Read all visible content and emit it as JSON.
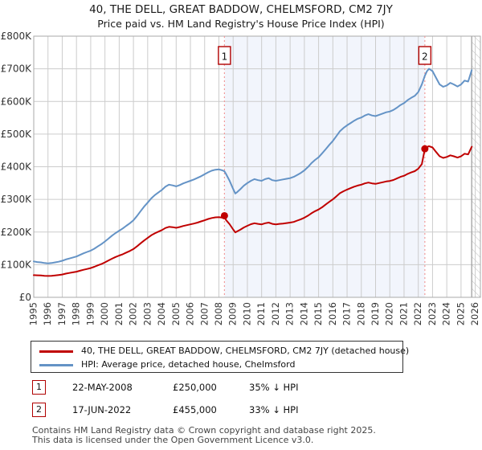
{
  "header": {
    "title": "40, THE DELL, GREAT BADDOW, CHELMSFORD, CM2 7JY",
    "subtitle": "Price paid vs. HM Land Registry's House Price Index (HPI)"
  },
  "colors": {
    "price_line": "#c00000",
    "hpi_line": "#6493c6",
    "grid": "#cccccc",
    "plot_border": "#aaaaaa",
    "shade": "#f2f5fc",
    "sale_dash": "#f29a9a",
    "marker_box_border": "#b00000",
    "hatch": "#c8c8c8",
    "hatch_edge": "#999999",
    "axis_text": "#333333"
  },
  "chart_data": {
    "type": "line",
    "title": "40, THE DELL, GREAT BADDOW, CHELMSFORD, CM2 7JY",
    "subtitle": "Price paid vs. HM Land Registry's House Price Index (HPI)",
    "x_axis": {
      "range": [
        1995,
        2026.36
      ],
      "ticks": [
        "1995",
        "1996",
        "1997",
        "1998",
        "1999",
        "2000",
        "2001",
        "2002",
        "2003",
        "2004",
        "2005",
        "2006",
        "2007",
        "2008",
        "2009",
        "2010",
        "2011",
        "2012",
        "2013",
        "2014",
        "2015",
        "2016",
        "2017",
        "2018",
        "2019",
        "2020",
        "2021",
        "2022",
        "2023",
        "2024",
        "2025",
        "2026"
      ]
    },
    "y_axis": {
      "range_k": [
        0,
        800
      ],
      "tick_step_k": 100,
      "tick_labels": [
        "£0",
        "£100K",
        "£200K",
        "£300K",
        "£400K",
        "£500K",
        "£600K",
        "£700K",
        "£800K"
      ]
    },
    "grid": true,
    "legend_position": "bottom",
    "units": "GBP thousands",
    "shaded_region": {
      "from": 2008.39,
      "to": 2022.46
    },
    "future_hatch_from": 2025.75,
    "sales": [
      {
        "num": "1",
        "date": "22-MAY-2008",
        "x": 2008.39,
        "value_k": 250,
        "price": "£250,000",
        "vs_hpi": "35% ↓ HPI"
      },
      {
        "num": "2",
        "date": "17-JUN-2022",
        "x": 2022.46,
        "value_k": 455,
        "price": "£455,000",
        "vs_hpi": "33% ↓ HPI"
      }
    ],
    "series": [
      {
        "name": "40, THE DELL, GREAT BADDOW, CHELMSFORD, CM2 7JY (detached house)",
        "color": "#c00000",
        "points": [
          [
            1995,
            68
          ],
          [
            1995.25,
            67.5
          ],
          [
            1995.5,
            67
          ],
          [
            1995.75,
            66
          ],
          [
            1996,
            65.5
          ],
          [
            1996.25,
            66
          ],
          [
            1996.5,
            67
          ],
          [
            1996.75,
            68.5
          ],
          [
            1997,
            70
          ],
          [
            1997.25,
            72.5
          ],
          [
            1997.5,
            74.5
          ],
          [
            1997.75,
            76.5
          ],
          [
            1998,
            78.5
          ],
          [
            1998.25,
            81.5
          ],
          [
            1998.5,
            84.5
          ],
          [
            1998.75,
            87
          ],
          [
            1999,
            89.5
          ],
          [
            1999.25,
            93.5
          ],
          [
            1999.5,
            98
          ],
          [
            1999.75,
            102
          ],
          [
            2000,
            107
          ],
          [
            2000.25,
            113
          ],
          [
            2000.5,
            118.5
          ],
          [
            2000.75,
            123.5
          ],
          [
            2001,
            128
          ],
          [
            2001.25,
            132
          ],
          [
            2001.5,
            137
          ],
          [
            2001.75,
            142
          ],
          [
            2002,
            148
          ],
          [
            2002.25,
            156
          ],
          [
            2002.5,
            165.5
          ],
          [
            2002.75,
            174
          ],
          [
            2003,
            182
          ],
          [
            2003.25,
            190
          ],
          [
            2003.5,
            196
          ],
          [
            2003.75,
            201
          ],
          [
            2004,
            206
          ],
          [
            2004.25,
            212.5
          ],
          [
            2004.5,
            216
          ],
          [
            2004.75,
            215
          ],
          [
            2005,
            213
          ],
          [
            2005.25,
            215.5
          ],
          [
            2005.5,
            218.5
          ],
          [
            2005.75,
            221
          ],
          [
            2006,
            223.5
          ],
          [
            2006.25,
            226
          ],
          [
            2006.5,
            229
          ],
          [
            2006.75,
            232.5
          ],
          [
            2007,
            236
          ],
          [
            2007.25,
            240
          ],
          [
            2007.5,
            243
          ],
          [
            2007.75,
            245
          ],
          [
            2008,
            245.5
          ],
          [
            2008.25,
            244
          ],
          [
            2008.39,
            250
          ],
          [
            2008.5,
            237
          ],
          [
            2008.75,
            224
          ],
          [
            2009,
            208
          ],
          [
            2009.15,
            199
          ],
          [
            2009.25,
            201
          ],
          [
            2009.5,
            207
          ],
          [
            2009.75,
            214
          ],
          [
            2010,
            219
          ],
          [
            2010.25,
            224
          ],
          [
            2010.5,
            227
          ],
          [
            2010.75,
            225
          ],
          [
            2011,
            223.5
          ],
          [
            2011.25,
            227
          ],
          [
            2011.5,
            229
          ],
          [
            2011.75,
            225
          ],
          [
            2012,
            223.5
          ],
          [
            2012.25,
            225
          ],
          [
            2012.5,
            226
          ],
          [
            2012.75,
            227.5
          ],
          [
            2013,
            229
          ],
          [
            2013.25,
            231
          ],
          [
            2013.5,
            235
          ],
          [
            2013.75,
            239
          ],
          [
            2014,
            244
          ],
          [
            2014.25,
            250
          ],
          [
            2014.5,
            257.5
          ],
          [
            2014.75,
            264
          ],
          [
            2015,
            269
          ],
          [
            2015.25,
            276
          ],
          [
            2015.5,
            284.5
          ],
          [
            2015.75,
            292.5
          ],
          [
            2016,
            300
          ],
          [
            2016.25,
            309.5
          ],
          [
            2016.5,
            319
          ],
          [
            2016.75,
            325
          ],
          [
            2017,
            330
          ],
          [
            2017.25,
            334.5
          ],
          [
            2017.5,
            339
          ],
          [
            2017.75,
            342.5
          ],
          [
            2018,
            345
          ],
          [
            2018.25,
            349
          ],
          [
            2018.5,
            351.5
          ],
          [
            2018.75,
            349
          ],
          [
            2019,
            347.5
          ],
          [
            2019.25,
            350
          ],
          [
            2019.5,
            352.5
          ],
          [
            2019.75,
            355
          ],
          [
            2020,
            356.5
          ],
          [
            2020.25,
            359.5
          ],
          [
            2020.5,
            364
          ],
          [
            2020.75,
            369
          ],
          [
            2021,
            372.5
          ],
          [
            2021.25,
            378
          ],
          [
            2021.5,
            382.5
          ],
          [
            2021.75,
            386.5
          ],
          [
            2022,
            394
          ],
          [
            2022.25,
            408
          ],
          [
            2022.46,
            455
          ],
          [
            2022.6,
            460
          ],
          [
            2022.75,
            463
          ],
          [
            2023,
            459
          ],
          [
            2023.25,
            445
          ],
          [
            2023.5,
            432
          ],
          [
            2023.75,
            427
          ],
          [
            2024,
            430
          ],
          [
            2024.25,
            435
          ],
          [
            2024.5,
            432
          ],
          [
            2024.75,
            428
          ],
          [
            2025,
            432
          ],
          [
            2025.25,
            440
          ],
          [
            2025.5,
            438
          ],
          [
            2025.75,
            461
          ]
        ]
      },
      {
        "name": "HPI: Average price, detached house, Chelmsford",
        "color": "#6493c6",
        "points": [
          [
            1995,
            110
          ],
          [
            1995.25,
            108
          ],
          [
            1995.5,
            107
          ],
          [
            1995.75,
            105
          ],
          [
            1996,
            104
          ],
          [
            1996.25,
            105
          ],
          [
            1996.5,
            107
          ],
          [
            1996.75,
            109
          ],
          [
            1997,
            112
          ],
          [
            1997.25,
            116
          ],
          [
            1997.5,
            119
          ],
          [
            1997.75,
            122
          ],
          [
            1998,
            125
          ],
          [
            1998.25,
            130
          ],
          [
            1998.5,
            135
          ],
          [
            1998.75,
            139
          ],
          [
            1999,
            143
          ],
          [
            1999.25,
            149
          ],
          [
            1999.5,
            156
          ],
          [
            1999.75,
            163
          ],
          [
            2000,
            171
          ],
          [
            2000.25,
            180
          ],
          [
            2000.5,
            189
          ],
          [
            2000.75,
            197
          ],
          [
            2001,
            204
          ],
          [
            2001.25,
            211
          ],
          [
            2001.5,
            219
          ],
          [
            2001.75,
            227
          ],
          [
            2002,
            236
          ],
          [
            2002.25,
            249
          ],
          [
            2002.5,
            264
          ],
          [
            2002.75,
            278
          ],
          [
            2003,
            290
          ],
          [
            2003.25,
            303
          ],
          [
            2003.5,
            313
          ],
          [
            2003.75,
            321
          ],
          [
            2004,
            329
          ],
          [
            2004.25,
            339
          ],
          [
            2004.5,
            345
          ],
          [
            2004.75,
            343
          ],
          [
            2005,
            340
          ],
          [
            2005.25,
            344
          ],
          [
            2005.5,
            349
          ],
          [
            2005.75,
            353
          ],
          [
            2006,
            357
          ],
          [
            2006.25,
            361
          ],
          [
            2006.5,
            366
          ],
          [
            2006.75,
            371
          ],
          [
            2007,
            377
          ],
          [
            2007.25,
            383
          ],
          [
            2007.5,
            388
          ],
          [
            2007.75,
            391
          ],
          [
            2008,
            392
          ],
          [
            2008.25,
            389
          ],
          [
            2008.39,
            386
          ],
          [
            2008.5,
            378
          ],
          [
            2008.75,
            357
          ],
          [
            2009,
            332
          ],
          [
            2009.15,
            318
          ],
          [
            2009.25,
            321
          ],
          [
            2009.5,
            331
          ],
          [
            2009.75,
            342
          ],
          [
            2010,
            350
          ],
          [
            2010.25,
            357
          ],
          [
            2010.5,
            362
          ],
          [
            2010.75,
            359
          ],
          [
            2011,
            357
          ],
          [
            2011.25,
            362
          ],
          [
            2011.5,
            365
          ],
          [
            2011.75,
            359
          ],
          [
            2012,
            357
          ],
          [
            2012.25,
            359
          ],
          [
            2012.5,
            361
          ],
          [
            2012.75,
            363
          ],
          [
            2013,
            365
          ],
          [
            2013.25,
            369
          ],
          [
            2013.5,
            375
          ],
          [
            2013.75,
            381
          ],
          [
            2014,
            389
          ],
          [
            2014.25,
            399
          ],
          [
            2014.5,
            411
          ],
          [
            2014.75,
            421
          ],
          [
            2015,
            429
          ],
          [
            2015.25,
            441
          ],
          [
            2015.5,
            454
          ],
          [
            2015.75,
            467
          ],
          [
            2016,
            479
          ],
          [
            2016.25,
            494
          ],
          [
            2016.5,
            509
          ],
          [
            2016.75,
            519
          ],
          [
            2017,
            527
          ],
          [
            2017.25,
            534
          ],
          [
            2017.5,
            541
          ],
          [
            2017.75,
            547
          ],
          [
            2018,
            551
          ],
          [
            2018.25,
            557
          ],
          [
            2018.5,
            561
          ],
          [
            2018.75,
            557
          ],
          [
            2019,
            555
          ],
          [
            2019.25,
            559
          ],
          [
            2019.5,
            563
          ],
          [
            2019.75,
            567
          ],
          [
            2020,
            569
          ],
          [
            2020.25,
            574
          ],
          [
            2020.5,
            581
          ],
          [
            2020.75,
            589
          ],
          [
            2021,
            595
          ],
          [
            2021.25,
            604
          ],
          [
            2021.5,
            611
          ],
          [
            2021.75,
            617
          ],
          [
            2022,
            629
          ],
          [
            2022.25,
            652
          ],
          [
            2022.46,
            679
          ],
          [
            2022.6,
            692
          ],
          [
            2022.75,
            700
          ],
          [
            2023,
            693
          ],
          [
            2023.25,
            672
          ],
          [
            2023.5,
            652
          ],
          [
            2023.75,
            645
          ],
          [
            2024,
            649
          ],
          [
            2024.25,
            657
          ],
          [
            2024.5,
            652
          ],
          [
            2024.75,
            646
          ],
          [
            2025,
            652
          ],
          [
            2025.25,
            664
          ],
          [
            2025.5,
            661
          ],
          [
            2025.75,
            696
          ]
        ]
      }
    ]
  },
  "legend": {
    "items": [
      {
        "label": "40, THE DELL, GREAT BADDOW, CHELMSFORD, CM2 7JY (detached house)",
        "color": "#c00000"
      },
      {
        "label": "HPI: Average price, detached house, Chelmsford",
        "color": "#6493c6"
      }
    ]
  },
  "annotations": [
    {
      "num": "1",
      "date": "22-MAY-2008",
      "price": "£250,000",
      "vs_hpi": "35% ↓ HPI"
    },
    {
      "num": "2",
      "date": "17-JUN-2022",
      "price": "£455,000",
      "vs_hpi": "33% ↓ HPI"
    }
  ],
  "footer": {
    "line1": "Contains HM Land Registry data © Crown copyright and database right 2025.",
    "line2": "This data is licensed under the Open Government Licence v3.0."
  }
}
